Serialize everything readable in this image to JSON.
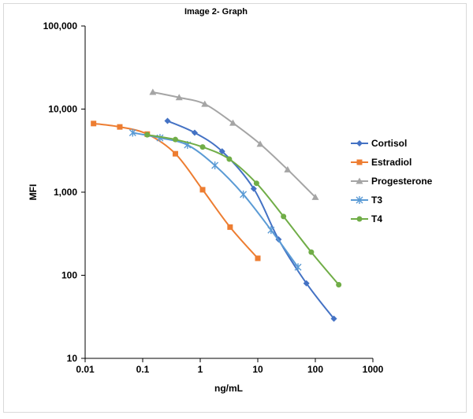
{
  "chart_data": {
    "type": "line",
    "title": "Image 2- Graph",
    "xlabel": "ng/mL",
    "ylabel": "MFI",
    "x_scale": "log",
    "y_scale": "log",
    "xlim": [
      0.01,
      1000
    ],
    "ylim": [
      10,
      100000
    ],
    "x_ticks": [
      0.01,
      0.1,
      1,
      10,
      100,
      1000
    ],
    "x_tick_labels": [
      "0.01",
      "0.1",
      "1",
      "10",
      "100",
      "1000"
    ],
    "y_ticks": [
      10,
      100,
      1000,
      10000,
      100000
    ],
    "y_tick_labels": [
      "10",
      "100",
      "1,000",
      "10,000",
      "100,000"
    ],
    "grid": false,
    "legend_position": "right",
    "series": [
      {
        "name": "Cortisol",
        "color": "#4472C4",
        "marker": "diamond",
        "points": [
          [
            0.27,
            7200
          ],
          [
            0.8,
            5200
          ],
          [
            2.4,
            3100
          ],
          [
            8.5,
            1100
          ],
          [
            23,
            270
          ],
          [
            70,
            80
          ],
          [
            210,
            30
          ]
        ]
      },
      {
        "name": "Estradiol",
        "color": "#ED7D31",
        "marker": "square",
        "points": [
          [
            0.014,
            6700
          ],
          [
            0.04,
            6100
          ],
          [
            0.12,
            5000
          ],
          [
            0.37,
            2900
          ],
          [
            1.1,
            1070
          ],
          [
            3.3,
            380
          ],
          [
            10,
            160
          ]
        ]
      },
      {
        "name": "Progesterone",
        "color": "#A5A5A5",
        "marker": "triangle",
        "points": [
          [
            0.15,
            16000
          ],
          [
            0.43,
            13800
          ],
          [
            1.2,
            11500
          ],
          [
            3.7,
            6800
          ],
          [
            11,
            3800
          ],
          [
            33,
            1870
          ],
          [
            100,
            870
          ]
        ]
      },
      {
        "name": "T3",
        "color": "#5B9BD5",
        "marker": "star",
        "points": [
          [
            0.067,
            5200
          ],
          [
            0.2,
            4500
          ],
          [
            0.6,
            3700
          ],
          [
            1.8,
            2100
          ],
          [
            5.6,
            940
          ],
          [
            17,
            350
          ],
          [
            50,
            125
          ]
        ]
      },
      {
        "name": "T4",
        "color": "#70AD47",
        "marker": "circle",
        "points": [
          [
            0.12,
            4900
          ],
          [
            0.37,
            4300
          ],
          [
            1.1,
            3500
          ],
          [
            3.2,
            2500
          ],
          [
            9.5,
            1280
          ],
          [
            28,
            510
          ],
          [
            85,
            190
          ],
          [
            255,
            77
          ]
        ]
      }
    ]
  }
}
